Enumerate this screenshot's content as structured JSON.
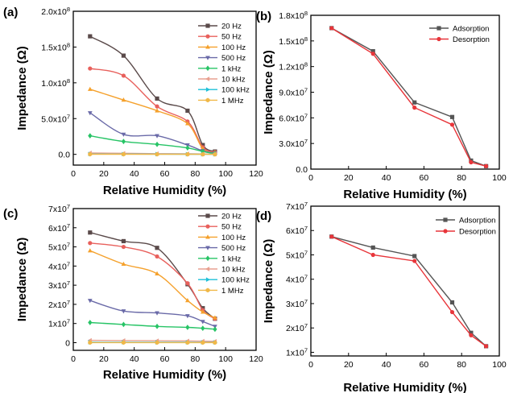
{
  "chart_data": [
    {
      "panel": "(a)",
      "type": "line",
      "xlabel": "Relative Humidity (%)",
      "ylabel": "Impedance (Ω)",
      "xlim": [
        0,
        120
      ],
      "ylim": [
        -15000000.0,
        200000000.0
      ],
      "x_ticks": [
        0,
        20,
        40,
        60,
        80,
        100,
        120
      ],
      "x_tick_labels": [
        "0",
        "20",
        "40",
        "60",
        "80",
        "100",
        "120"
      ],
      "y_ticks": [
        0,
        50000000.0,
        100000000.0,
        150000000.0,
        200000000.0
      ],
      "y_tick_labels": [
        {
          "mant": "0.0",
          "exp": ""
        },
        {
          "mant": "5.0x10",
          "exp": "7"
        },
        {
          "mant": "1.0x10",
          "exp": "8"
        },
        {
          "mant": "1.5x10",
          "exp": "8"
        },
        {
          "mant": "2.0x10",
          "exp": "8"
        }
      ],
      "legend_position": "top-right",
      "grid": false,
      "x": [
        11,
        33,
        55,
        75,
        85,
        93
      ],
      "series": [
        {
          "name": "20 Hz",
          "color": "#5a4a4a",
          "marker": "square",
          "values": [
            165000000.0,
            138000000.0,
            78000000.0,
            61000000.0,
            13000000.0,
            4000000.0
          ]
        },
        {
          "name": "50 Hz",
          "color": "#e8605c",
          "marker": "circle",
          "values": [
            120000000.0,
            110000000.0,
            67000000.0,
            46000000.0,
            10000000.0,
            3000000.0
          ]
        },
        {
          "name": "100 Hz",
          "color": "#f5a12c",
          "marker": "triangle-up",
          "values": [
            91000000.0,
            76000000.0,
            61000000.0,
            43000000.0,
            8000000.0,
            2500000.0
          ]
        },
        {
          "name": "500 Hz",
          "color": "#6a6aa8",
          "marker": "triangle-down",
          "values": [
            58000000.0,
            28000000.0,
            26000000.0,
            13000000.0,
            5000000.0,
            1500000.0
          ]
        },
        {
          "name": "1 kHz",
          "color": "#27c466",
          "marker": "diamond",
          "values": [
            26000000.0,
            18000000.0,
            14000000.0,
            9000000.0,
            4000000.0,
            1000000.0
          ]
        },
        {
          "name": "10 kHz",
          "color": "#e8a090",
          "marker": "triangle-left",
          "values": [
            2000000.0,
            1500000.0,
            1000000.0,
            800000.0,
            500000.0,
            300000.0
          ]
        },
        {
          "name": "100 kHz",
          "color": "#1ec0d8",
          "marker": "triangle-right",
          "values": [
            500000.0,
            400000.0,
            300000.0,
            200000.0,
            100000.0,
            50000.0
          ]
        },
        {
          "name": "1 MHz",
          "color": "#f0b848",
          "marker": "hexagon",
          "values": [
            200000.0,
            150000.0,
            100000.0,
            80000.0,
            50000.0,
            20000.0
          ]
        }
      ]
    },
    {
      "panel": "(b)",
      "type": "line",
      "xlabel": "Relative Humidity (%)",
      "ylabel": "Impedance (Ω)",
      "xlim": [
        0,
        100
      ],
      "ylim": [
        0,
        180000000.0
      ],
      "x_ticks": [
        0,
        20,
        40,
        60,
        80,
        100
      ],
      "x_tick_labels": [
        "0",
        "20",
        "40",
        "60",
        "80",
        "100"
      ],
      "y_ticks": [
        0,
        30000000.0,
        60000000.0,
        90000000.0,
        120000000.0,
        150000000.0,
        180000000.0
      ],
      "y_tick_labels": [
        {
          "mant": "0.0",
          "exp": ""
        },
        {
          "mant": "3.0x10",
          "exp": "7"
        },
        {
          "mant": "6.0x10",
          "exp": "7"
        },
        {
          "mant": "9.0x10",
          "exp": "7"
        },
        {
          "mant": "1.2x10",
          "exp": "8"
        },
        {
          "mant": "1.5x10",
          "exp": "8"
        },
        {
          "mant": "1.8x10",
          "exp": "8"
        }
      ],
      "legend_position": "top-right",
      "grid": false,
      "x": [
        11,
        33,
        55,
        75,
        85,
        93
      ],
      "series": [
        {
          "name": "Adsorption",
          "color": "#555555",
          "marker": "square",
          "values": [
            165000000.0,
            138000000.0,
            78000000.0,
            61000000.0,
            10000000.0,
            3500000.0
          ]
        },
        {
          "name": "Desorption",
          "color": "#e8353a",
          "marker": "circle",
          "values": [
            165000000.0,
            135000000.0,
            72000000.0,
            52000000.0,
            8000000.0,
            3500000.0
          ]
        }
      ]
    },
    {
      "panel": "(c)",
      "type": "line",
      "xlabel": "Relative Humidity (%)",
      "ylabel": "Impedance (Ω)",
      "xlim": [
        0,
        120
      ],
      "ylim": [
        -4000000.0,
        70000000.0
      ],
      "x_ticks": [
        0,
        20,
        40,
        60,
        80,
        100,
        120
      ],
      "x_tick_labels": [
        "0",
        "20",
        "40",
        "60",
        "80",
        "100",
        "120"
      ],
      "y_ticks": [
        0,
        10000000.0,
        20000000.0,
        30000000.0,
        40000000.0,
        50000000.0,
        60000000.0,
        70000000.0
      ],
      "y_tick_labels": [
        {
          "mant": "0",
          "exp": ""
        },
        {
          "mant": "1x10",
          "exp": "7"
        },
        {
          "mant": "2x10",
          "exp": "7"
        },
        {
          "mant": "3x10",
          "exp": "7"
        },
        {
          "mant": "4x10",
          "exp": "7"
        },
        {
          "mant": "5x10",
          "exp": "7"
        },
        {
          "mant": "6x10",
          "exp": "7"
        },
        {
          "mant": "7x10",
          "exp": "7"
        }
      ],
      "legend_position": "top-right",
      "grid": false,
      "x": [
        11,
        33,
        55,
        75,
        85,
        93
      ],
      "series": [
        {
          "name": "20 Hz",
          "color": "#5a4a4a",
          "marker": "square",
          "values": [
            57500000.0,
            53000000.0,
            49500000.0,
            30500000.0,
            18000000.0,
            12500000.0
          ]
        },
        {
          "name": "50 Hz",
          "color": "#e8605c",
          "marker": "circle",
          "values": [
            52000000.0,
            50000000.0,
            45000000.0,
            31000000.0,
            17000000.0,
            12500000.0
          ]
        },
        {
          "name": "100 Hz",
          "color": "#f5a12c",
          "marker": "triangle-up",
          "values": [
            48000000.0,
            41000000.0,
            36000000.0,
            22000000.0,
            16000000.0,
            13000000.0
          ]
        },
        {
          "name": "500 Hz",
          "color": "#6a6aa8",
          "marker": "triangle-down",
          "values": [
            22000000.0,
            16500000.0,
            15500000.0,
            14000000.0,
            11000000.0,
            8500000.0
          ]
        },
        {
          "name": "1 kHz",
          "color": "#27c466",
          "marker": "diamond",
          "values": [
            10500000.0,
            9500000.0,
            8500000.0,
            8000000.0,
            7500000.0,
            7000000.0
          ]
        },
        {
          "name": "10 kHz",
          "color": "#e8a090",
          "marker": "triangle-left",
          "values": [
            1200000.0,
            1100000.0,
            1000000.0,
            900000.0,
            800000.0,
            700000.0
          ]
        },
        {
          "name": "100 kHz",
          "color": "#1ec0d8",
          "marker": "triangle-right",
          "values": [
            200000.0,
            180000.0,
            160000.0,
            150000.0,
            140000.0,
            130000.0
          ]
        },
        {
          "name": "1 MHz",
          "color": "#f0b848",
          "marker": "hexagon",
          "values": [
            50000.0,
            40000.0,
            35000.0,
            30000.0,
            25000.0,
            20000.0
          ]
        }
      ]
    },
    {
      "panel": "(d)",
      "type": "line",
      "xlabel": "Relative Humidity (%)",
      "ylabel": "Impedance (Ω)",
      "xlim": [
        0,
        100
      ],
      "ylim": [
        8500000.0,
        70000000.0
      ],
      "x_ticks": [
        0,
        20,
        40,
        60,
        80,
        100
      ],
      "x_tick_labels": [
        "0",
        "20",
        "40",
        "60",
        "80",
        "100"
      ],
      "y_ticks": [
        10000000.0,
        20000000.0,
        30000000.0,
        40000000.0,
        50000000.0,
        60000000.0,
        70000000.0
      ],
      "y_tick_labels": [
        {
          "mant": "1x10",
          "exp": "7"
        },
        {
          "mant": "2x10",
          "exp": "7"
        },
        {
          "mant": "3x10",
          "exp": "7"
        },
        {
          "mant": "4x10",
          "exp": "7"
        },
        {
          "mant": "5x10",
          "exp": "7"
        },
        {
          "mant": "6x10",
          "exp": "7"
        },
        {
          "mant": "7x10",
          "exp": "7"
        }
      ],
      "legend_position": "top-right",
      "grid": false,
      "x": [
        11,
        33,
        55,
        75,
        85,
        93
      ],
      "series": [
        {
          "name": "Adsorption",
          "color": "#555555",
          "marker": "square",
          "values": [
            57500000.0,
            53000000.0,
            49500000.0,
            30500000.0,
            18000000.0,
            12500000.0
          ]
        },
        {
          "name": "Desorption",
          "color": "#e8353a",
          "marker": "circle",
          "values": [
            57500000.0,
            50000000.0,
            47500000.0,
            26500000.0,
            17000000.0,
            12500000.0
          ]
        }
      ]
    }
  ]
}
